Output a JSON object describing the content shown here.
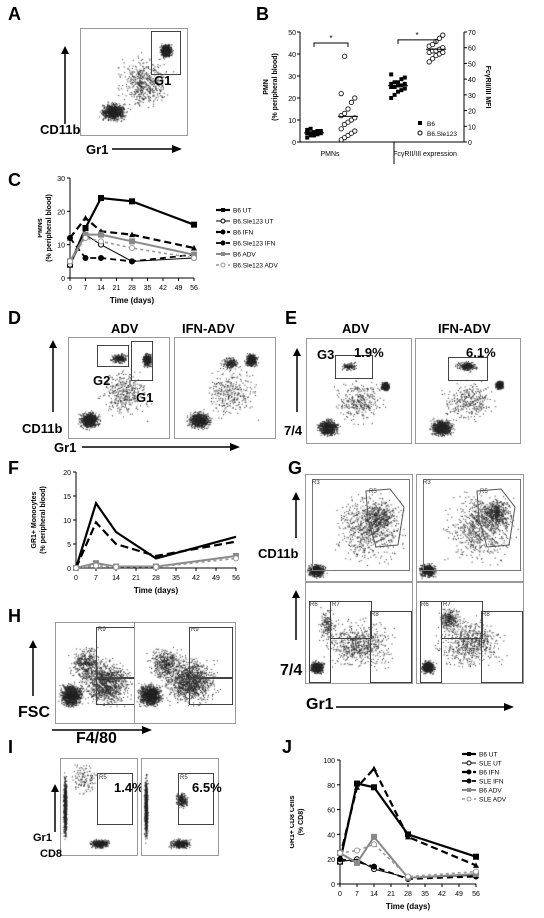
{
  "panels": {
    "A": {
      "letter": "A",
      "ylabel": "CD11b",
      "xlabel": "Gr1",
      "gate": "G1"
    },
    "B": {
      "letter": "B"
    },
    "C": {
      "letter": "C"
    },
    "D": {
      "letter": "D",
      "titles": [
        "ADV",
        "IFN-ADV"
      ],
      "ylabel": "CD11b",
      "xlabel": "Gr1",
      "gates": [
        "G2",
        "G1"
      ]
    },
    "E": {
      "letter": "E",
      "titles": [
        "ADV",
        "IFN-ADV"
      ],
      "ylabel": "7/4",
      "gate": "G3",
      "pcts": [
        "1.9%",
        "6.1%"
      ]
    },
    "F": {
      "letter": "F"
    },
    "G": {
      "letter": "G",
      "ylabel_top": "CD11b",
      "ylabel_bottom": "7/4",
      "xlabel": "Gr1",
      "gate_labels_top": [
        "R3",
        "R5",
        "R3",
        "R5"
      ],
      "gate_labels_bottom": [
        "R6",
        "R7",
        "R8",
        "R6",
        "R7",
        "R8"
      ]
    },
    "H": {
      "letter": "H",
      "ylabel": "FSC",
      "xlabel": "F4/80",
      "gate_labels": [
        "R9",
        "R9"
      ]
    },
    "I": {
      "letter": "I",
      "ylabel": "Gr1",
      "xlabel": "CD8",
      "gate_labels": [
        "R5",
        "R5"
      ],
      "pcts": [
        "1.4%",
        "6.5%"
      ]
    },
    "J": {
      "letter": "J"
    }
  },
  "chart_data": [
    {
      "id": "B",
      "type": "scatter",
      "ylabel": "PMN\n(% peripheral blood)",
      "y2label": "FcγRII/III MFI",
      "ylim": [
        0,
        50
      ],
      "y2lim": [
        0,
        70
      ],
      "yticks": [
        0,
        10,
        20,
        30,
        40,
        50
      ],
      "y2ticks": [
        0,
        10,
        20,
        30,
        40,
        50,
        60,
        70
      ],
      "categories": [
        "PMNs",
        "FcγRII/III expression"
      ],
      "significance": [
        "*",
        "*"
      ],
      "series": [
        {
          "name": "B6",
          "marker": "filled-square",
          "group": "PMNs",
          "values": [
            2,
            3,
            3,
            3.5,
            4,
            4,
            4,
            4.5,
            5,
            5,
            5.5,
            6
          ]
        },
        {
          "name": "B6.Sle123",
          "marker": "open-circle",
          "group": "PMNs",
          "values": [
            1,
            2,
            3,
            4,
            5,
            6,
            8,
            9,
            10,
            11,
            12,
            13,
            15,
            18,
            20,
            22,
            39
          ]
        },
        {
          "name": "B6",
          "marker": "filled-square",
          "group": "FcγRII/III expression",
          "axis": "y2",
          "values": [
            28,
            30,
            32,
            33,
            34,
            35,
            35,
            36,
            36,
            37,
            37,
            38,
            38,
            40,
            41,
            43
          ]
        },
        {
          "name": "B6.Sle123",
          "marker": "open-circle",
          "group": "FcγRII/III expression",
          "axis": "y2",
          "values": [
            51,
            53,
            55,
            56,
            57,
            57,
            58,
            58,
            59,
            60,
            61,
            62,
            64,
            66,
            68
          ]
        }
      ],
      "legend": [
        "B6",
        "B6.Sle123"
      ]
    },
    {
      "id": "C",
      "type": "line",
      "ylabel": "PMNs\n(% peripheral blood)",
      "xlabel": "Time (days)",
      "x": [
        0,
        7,
        14,
        21,
        28,
        35,
        42,
        49,
        56
      ],
      "ylim": [
        0,
        30
      ],
      "yticks": [
        0,
        10,
        20,
        30
      ],
      "series": [
        {
          "name": "B6 UT",
          "style": "solid-black-square",
          "x": [
            0,
            7,
            14,
            28,
            56
          ],
          "values": [
            4,
            15,
            24,
            23,
            16
          ]
        },
        {
          "name": "B6.Sle123 UT",
          "style": "solid-black-open",
          "x": [
            0,
            7,
            14,
            28,
            56
          ],
          "values": [
            4,
            13,
            10,
            5,
            6
          ]
        },
        {
          "name": "B6 IFN",
          "style": "dash-black-square",
          "x": [
            0,
            7,
            14,
            28,
            56
          ],
          "values": [
            12,
            18,
            14,
            13,
            9
          ]
        },
        {
          "name": "B6.Sle123 IFN",
          "style": "dash-black-circle",
          "x": [
            0,
            7,
            14,
            28,
            56
          ],
          "values": [
            12,
            6,
            6,
            5,
            7
          ]
        },
        {
          "name": "B6 ADV",
          "style": "solid-grey",
          "x": [
            0,
            7,
            14,
            28,
            56
          ],
          "values": [
            5,
            13,
            13,
            11,
            7
          ]
        },
        {
          "name": "B6.Sle123 ADV",
          "style": "dash-grey",
          "x": [
            0,
            7,
            14,
            28,
            56
          ],
          "values": [
            5,
            12,
            11,
            9,
            6
          ]
        }
      ]
    },
    {
      "id": "F",
      "type": "line",
      "ylabel": "GR1+ Monocytes\n(% peripheral blood)",
      "xlabel": "Time (days)",
      "x": [
        0,
        7,
        14,
        21,
        28,
        35,
        42,
        49,
        56
      ],
      "ylim": [
        0,
        20
      ],
      "yticks": [
        0,
        5,
        10,
        15,
        20
      ],
      "series": [
        {
          "style": "solid-black",
          "x": [
            0,
            7,
            14,
            28,
            56
          ],
          "values": [
            0,
            13.5,
            7.5,
            2,
            6.5
          ]
        },
        {
          "style": "dash-black",
          "x": [
            0,
            7,
            14,
            28,
            56
          ],
          "values": [
            0,
            9.5,
            5,
            2.5,
            5.5
          ]
        },
        {
          "style": "solid-grey",
          "x": [
            0,
            7,
            14,
            28,
            56
          ],
          "values": [
            0,
            1,
            0.3,
            0.3,
            2.5
          ]
        },
        {
          "style": "dash-grey",
          "x": [
            0,
            7,
            14,
            28,
            56
          ],
          "values": [
            0,
            0.5,
            0.2,
            0.2,
            2
          ]
        }
      ]
    },
    {
      "id": "J",
      "type": "line",
      "ylabel": "GR1+ CD8 Cells\n(% CD8)",
      "xlabel": "Time (days)",
      "x": [
        0,
        7,
        14,
        21,
        28,
        35,
        42,
        49,
        56
      ],
      "ylim": [
        0,
        100
      ],
      "yticks": [
        0,
        20,
        40,
        60,
        80,
        100
      ],
      "series": [
        {
          "name": "B6 UT",
          "style": "solid-black-square",
          "x": [
            0,
            7,
            14,
            28,
            56
          ],
          "values": [
            18,
            81,
            78,
            40,
            22
          ]
        },
        {
          "name": "SLE UT",
          "style": "solid-black-open",
          "x": [
            0,
            7,
            14,
            28,
            56
          ],
          "values": [
            18,
            20,
            12,
            5,
            7
          ]
        },
        {
          "name": "B6 IFN",
          "style": "dash-black-square",
          "x": [
            0,
            7,
            14,
            28,
            56
          ],
          "values": [
            22,
            78,
            93,
            38,
            15
          ]
        },
        {
          "name": "SLE IFN",
          "style": "dash-black-circle",
          "x": [
            0,
            7,
            14,
            28,
            56
          ],
          "values": [
            20,
            18,
            14,
            4,
            6
          ]
        },
        {
          "name": "B6 ADV",
          "style": "solid-grey",
          "x": [
            0,
            7,
            14,
            28,
            56
          ],
          "values": [
            25,
            17,
            38,
            5,
            8
          ]
        },
        {
          "name": "SLE ADV",
          "style": "dash-grey",
          "x": [
            0,
            7,
            14,
            28,
            56
          ],
          "values": [
            25,
            27,
            32,
            6,
            10
          ]
        }
      ]
    }
  ]
}
